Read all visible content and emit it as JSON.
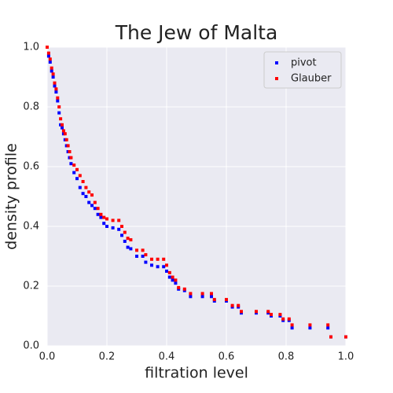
{
  "chart_data": {
    "type": "scatter",
    "title": "The Jew of Malta",
    "xlabel": "filtration level",
    "ylabel": "density profile",
    "xlim": [
      0,
      1
    ],
    "ylim": [
      0,
      1
    ],
    "xticks": [
      {
        "value": 0,
        "label": "0.0"
      },
      0.2,
      0.4,
      0.6,
      0.8,
      {
        "value": 1,
        "label": "1.0"
      }
    ],
    "yticks": [
      {
        "value": 0,
        "label": "0.0"
      },
      0.2,
      0.4,
      0.6,
      0.8,
      {
        "value": 1,
        "label": "1.0"
      }
    ],
    "grid": true,
    "legend": "upper right",
    "series": [
      {
        "name": "pivot",
        "color": "#0000ff",
        "x": [
          0.0,
          0.005,
          0.01,
          0.015,
          0.02,
          0.025,
          0.03,
          0.035,
          0.04,
          0.045,
          0.05,
          0.055,
          0.06,
          0.065,
          0.07,
          0.075,
          0.08,
          0.09,
          0.1,
          0.11,
          0.12,
          0.13,
          0.14,
          0.15,
          0.16,
          0.17,
          0.18,
          0.19,
          0.2,
          0.22,
          0.24,
          0.25,
          0.26,
          0.27,
          0.28,
          0.3,
          0.32,
          0.33,
          0.35,
          0.37,
          0.39,
          0.4,
          0.41,
          0.42,
          0.43,
          0.44,
          0.46,
          0.48,
          0.52,
          0.55,
          0.56,
          0.6,
          0.62,
          0.64,
          0.65,
          0.7,
          0.74,
          0.75,
          0.78,
          0.79,
          0.81,
          0.82,
          0.88,
          0.94,
          0.95,
          1.0
        ],
        "values": [
          1.0,
          0.97,
          0.95,
          0.92,
          0.9,
          0.87,
          0.85,
          0.82,
          0.78,
          0.74,
          0.73,
          0.71,
          0.69,
          0.67,
          0.65,
          0.63,
          0.61,
          0.58,
          0.56,
          0.53,
          0.51,
          0.5,
          0.48,
          0.47,
          0.46,
          0.44,
          0.43,
          0.41,
          0.4,
          0.395,
          0.39,
          0.37,
          0.35,
          0.33,
          0.325,
          0.3,
          0.3,
          0.28,
          0.27,
          0.265,
          0.265,
          0.25,
          0.23,
          0.22,
          0.21,
          0.19,
          0.185,
          0.165,
          0.165,
          0.165,
          0.15,
          0.15,
          0.13,
          0.13,
          0.11,
          0.11,
          0.11,
          0.1,
          0.1,
          0.085,
          0.085,
          0.06,
          0.06,
          0.06,
          0.03,
          0.03
        ]
      },
      {
        "name": "Glauber",
        "color": "#ff0000",
        "x": [
          0.0,
          0.005,
          0.01,
          0.015,
          0.02,
          0.025,
          0.03,
          0.035,
          0.04,
          0.045,
          0.05,
          0.055,
          0.06,
          0.065,
          0.07,
          0.075,
          0.08,
          0.09,
          0.1,
          0.11,
          0.12,
          0.13,
          0.14,
          0.15,
          0.16,
          0.17,
          0.18,
          0.19,
          0.2,
          0.22,
          0.24,
          0.25,
          0.26,
          0.27,
          0.28,
          0.3,
          0.32,
          0.33,
          0.35,
          0.37,
          0.39,
          0.4,
          0.41,
          0.42,
          0.43,
          0.44,
          0.46,
          0.48,
          0.52,
          0.55,
          0.56,
          0.6,
          0.62,
          0.64,
          0.65,
          0.7,
          0.74,
          0.75,
          0.78,
          0.79,
          0.81,
          0.82,
          0.88,
          0.94,
          0.95,
          1.0
        ],
        "values": [
          1.0,
          0.98,
          0.96,
          0.93,
          0.91,
          0.88,
          0.86,
          0.83,
          0.8,
          0.76,
          0.74,
          0.72,
          0.71,
          0.69,
          0.67,
          0.65,
          0.63,
          0.605,
          0.59,
          0.57,
          0.55,
          0.53,
          0.515,
          0.505,
          0.48,
          0.46,
          0.44,
          0.43,
          0.425,
          0.42,
          0.42,
          0.4,
          0.38,
          0.36,
          0.355,
          0.32,
          0.32,
          0.305,
          0.29,
          0.29,
          0.29,
          0.27,
          0.245,
          0.23,
          0.22,
          0.195,
          0.19,
          0.175,
          0.175,
          0.175,
          0.155,
          0.155,
          0.135,
          0.135,
          0.115,
          0.115,
          0.115,
          0.105,
          0.105,
          0.09,
          0.09,
          0.07,
          0.07,
          0.07,
          0.03,
          0.03
        ]
      }
    ]
  }
}
